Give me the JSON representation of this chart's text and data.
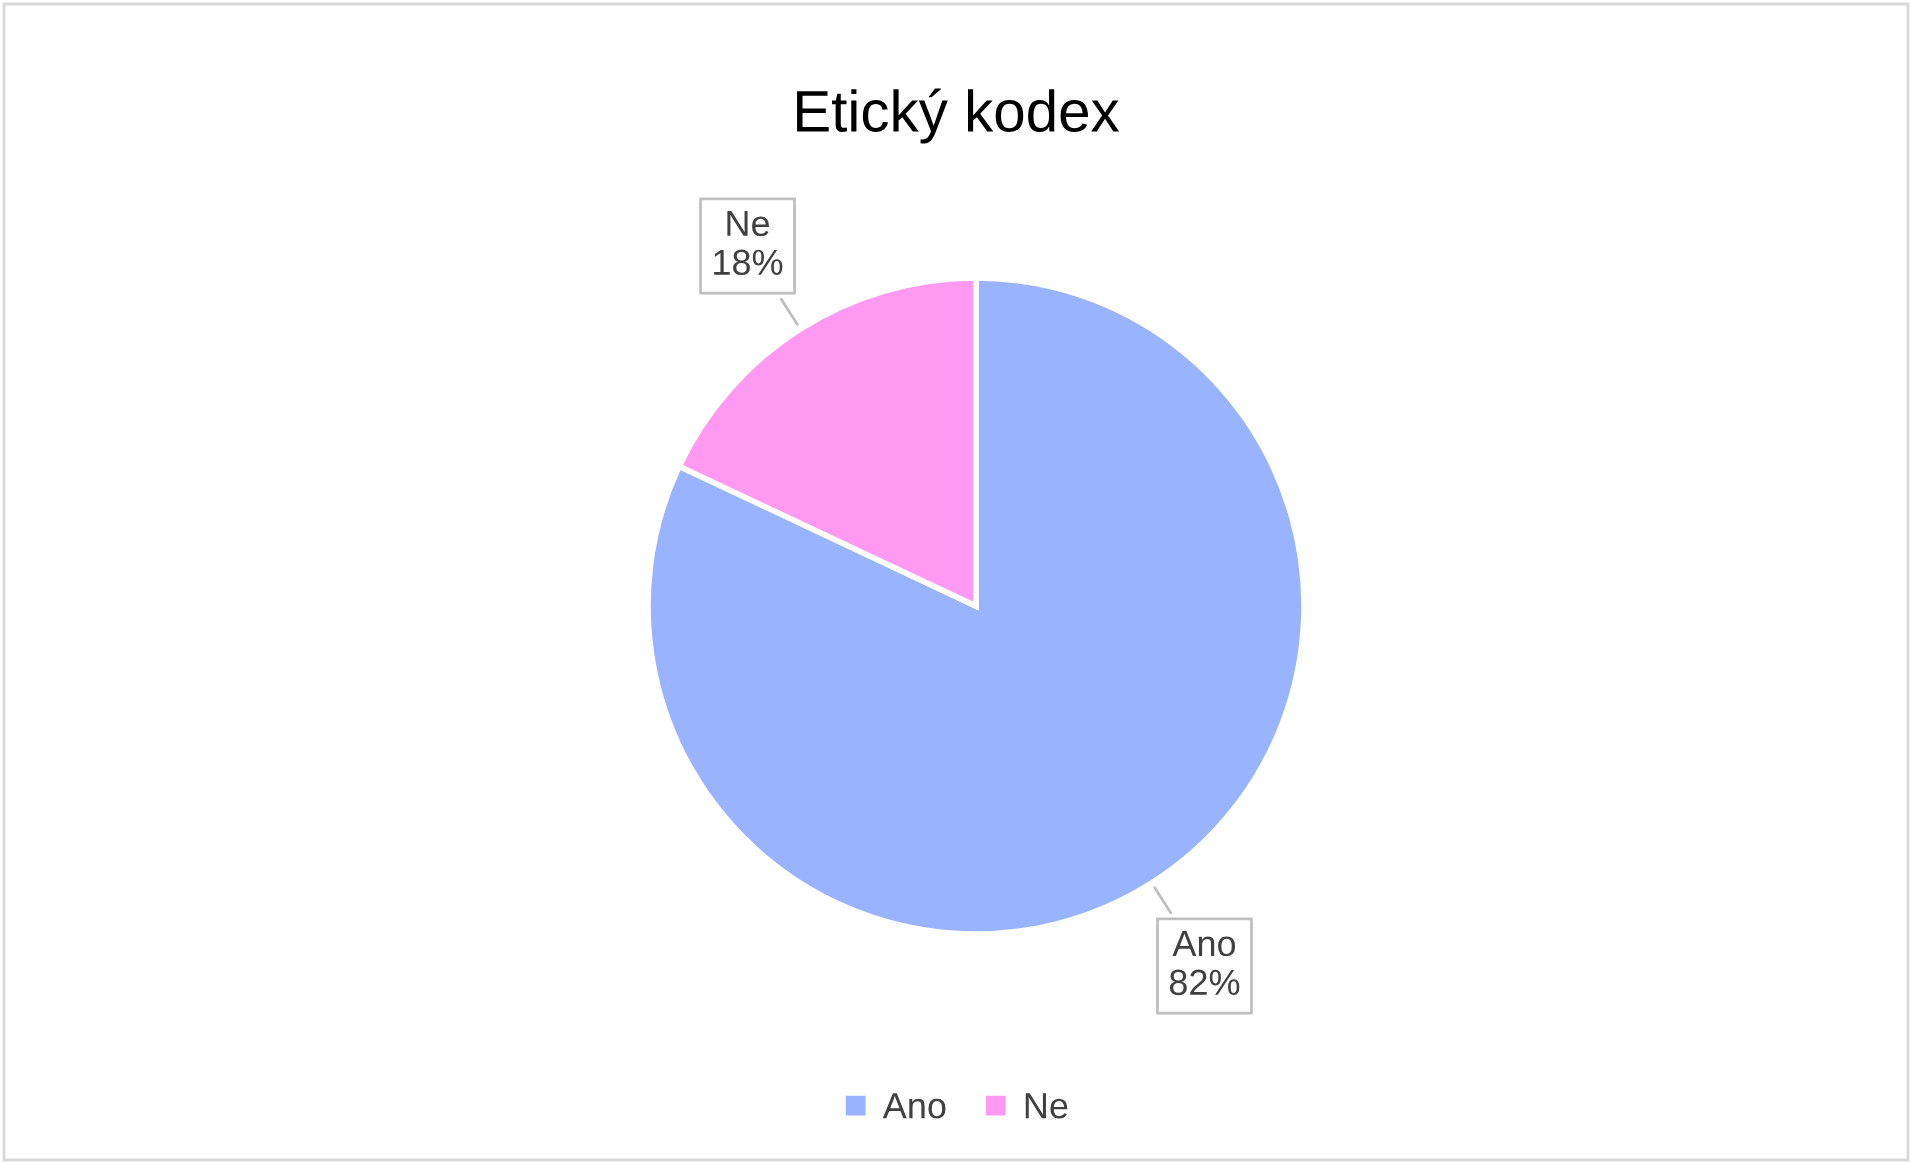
{
  "chart_data": {
    "type": "pie",
    "title": "Etický kodex",
    "categories": [
      "Ano",
      "Ne"
    ],
    "values": [
      82,
      18
    ],
    "colors": [
      "#99b3ff",
      "#ff99f2"
    ],
    "value_labels": [
      "82%",
      "18%"
    ],
    "legend": "bottom"
  }
}
